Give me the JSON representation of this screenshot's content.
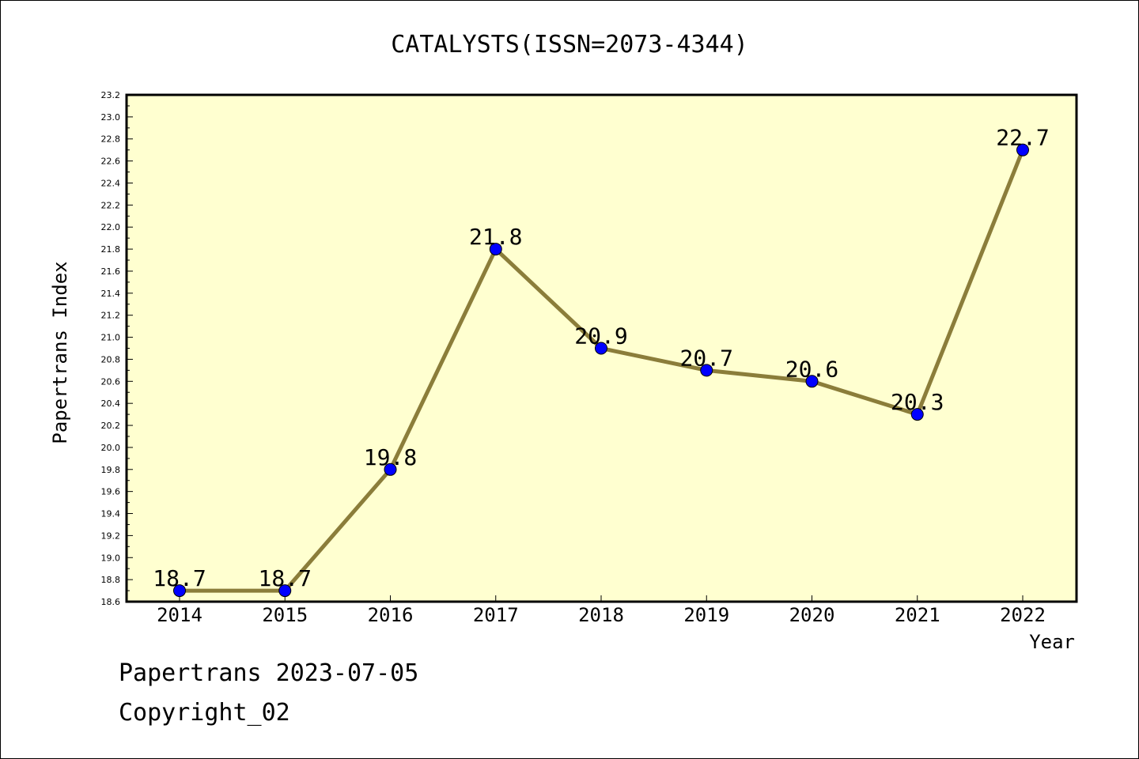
{
  "chart_data": {
    "type": "line",
    "title": "CATALYSTS(ISSN=2073-4344)",
    "xlabel": "Year",
    "ylabel": "Papertrans Index",
    "categories": [
      "2014",
      "2015",
      "2016",
      "2017",
      "2018",
      "2019",
      "2020",
      "2021",
      "2022"
    ],
    "values": [
      18.7,
      18.7,
      19.8,
      21.8,
      20.9,
      20.7,
      20.6,
      20.3,
      22.7
    ],
    "data_labels": [
      "18.7",
      "18.7",
      "19.8",
      "21.8",
      "20.9",
      "20.7",
      "20.6",
      "20.3",
      "22.7"
    ],
    "ylim": [
      18.6,
      23.2
    ],
    "yticks": [
      "18.6",
      "18.8",
      "19.0",
      "19.2",
      "19.4",
      "19.6",
      "19.8",
      "20.0",
      "20.2",
      "20.4",
      "20.6",
      "20.8",
      "21.0",
      "21.2",
      "21.4",
      "21.6",
      "21.8",
      "22.0",
      "22.2",
      "22.4",
      "22.6",
      "22.8",
      "23.0",
      "23.2"
    ],
    "grid": false,
    "legend": "none",
    "colors": {
      "plot_background": "#ffffd0",
      "line": "#8b7d3a",
      "marker": "#0000ff"
    }
  },
  "footer": {
    "line1": "Papertrans 2023-07-05",
    "line2": "Copyright_02"
  }
}
